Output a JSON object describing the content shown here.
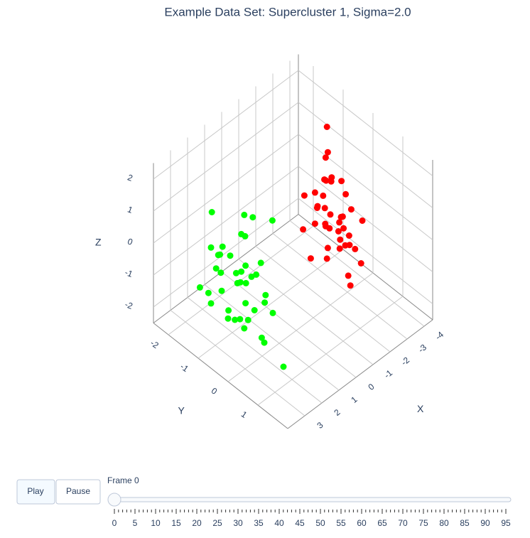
{
  "chart_data": {
    "type": "scatter3d",
    "title": "Example Data Set: Supercluster 1, Sigma=2.0",
    "xlabel": "X",
    "ylabel": "Y",
    "zlabel": "Z",
    "xlim": [
      -4.5,
      4
    ],
    "ylim": [
      -2.5,
      2
    ],
    "zlim": [
      -2.5,
      2.5
    ],
    "xticks": [
      -4,
      -3,
      -2,
      -1,
      0,
      1,
      2,
      3
    ],
    "yticks": [
      -2,
      -1,
      0,
      1
    ],
    "zticks": [
      -2,
      -1,
      0,
      1,
      2
    ],
    "grid": true,
    "series": [
      {
        "color": "#ff0000",
        "x": [
          -1.2,
          -1.5,
          -0.8,
          -2.1,
          -1.9,
          -1.0,
          -0.5,
          -2.6,
          -1.3,
          -1.7,
          -3.2,
          -1.1,
          -0.9,
          -2.0,
          -1.4,
          -1.6,
          -0.3,
          -2.4,
          -1.8,
          -1.2,
          -0.7,
          -2.9,
          -1.5,
          -1.0,
          -3.6,
          -1.3,
          -2.2,
          -0.6,
          -1.9,
          -1.1,
          -2.7,
          -1.4,
          -0.4,
          -1.7,
          -2.3,
          -1.0,
          -3.0,
          -1.6,
          -0.9,
          -2.0
        ],
        "y": [
          0.3,
          0.1,
          0.6,
          -0.2,
          0.5,
          0.9,
          0.2,
          -0.5,
          0.4,
          1.0,
          -0.8,
          0.0,
          1.3,
          0.7,
          -0.1,
          0.2,
          0.8,
          0.4,
          -0.4,
          1.1,
          0.5,
          0.0,
          0.6,
          -0.3,
          -1.0,
          0.9,
          0.3,
          1.4,
          0.1,
          0.4,
          -0.6,
          0.7,
          0.0,
          1.2,
          0.2,
          0.6,
          0.5,
          -0.2,
          0.9,
          0.3
        ],
        "z": [
          0.5,
          0.8,
          0.2,
          1.2,
          0.3,
          0.6,
          -0.3,
          1.5,
          0.9,
          0.1,
          2.0,
          0.4,
          -0.5,
          1.0,
          0.7,
          0.2,
          1.3,
          -0.2,
          0.8,
          0.5,
          1.8,
          0.6,
          -0.1,
          1.1,
          0.9,
          0.3,
          0.4,
          0.0,
          1.6,
          -0.4,
          0.7,
          1.0,
          0.5,
          -0.2,
          1.4,
          2.2,
          0.1,
          0.6,
          0.9,
          0.3
        ]
      },
      {
        "color": "#00ff00",
        "x": [
          2.4,
          2.1,
          2.8,
          1.9,
          2.6,
          3.1,
          2.2,
          1.6,
          2.9,
          2.5,
          3.4,
          2.0,
          1.7,
          2.7,
          2.3,
          3.0,
          1.5,
          2.6,
          2.2,
          3.3,
          2.8,
          1.8,
          2.4,
          2.1,
          3.6,
          2.5,
          1.4,
          2.9,
          2.3,
          2.7,
          3.2,
          1.9,
          2.5,
          2.0,
          3.0,
          2.6,
          1.3,
          2.8,
          2.2,
          2.4
        ],
        "y": [
          -0.6,
          -0.3,
          -0.9,
          -0.1,
          -1.2,
          -0.5,
          0.2,
          -0.8,
          -0.4,
          0.4,
          -1.0,
          -0.7,
          -1.5,
          -0.2,
          -0.9,
          0.1,
          -0.6,
          0.7,
          -1.3,
          -0.4,
          -0.1,
          -1.8,
          0.3,
          -0.5,
          -0.8,
          -1.1,
          0.0,
          0.5,
          -0.7,
          -0.3,
          -1.4,
          -0.6,
          1.0,
          -0.2,
          -0.9,
          -0.4,
          -1.0,
          0.2,
          -1.6,
          -0.5
        ],
        "z": [
          -0.5,
          -0.2,
          -0.8,
          0.3,
          -0.4,
          -1.0,
          -0.6,
          0.5,
          -1.3,
          -0.1,
          -0.7,
          0.8,
          -0.3,
          -1.5,
          0.1,
          -0.9,
          1.2,
          -0.4,
          -0.2,
          -1.1,
          -0.6,
          0.6,
          -1.7,
          0.0,
          -0.8,
          -0.5,
          1.5,
          -1.2,
          -0.3,
          0.2,
          -0.9,
          -0.7,
          -1.9,
          -0.1,
          0.4,
          -1.4,
          0.9,
          -0.6,
          -0.2,
          -0.4
        ]
      }
    ],
    "controls": {
      "play": "Play",
      "pause": "Pause",
      "current": "Frame 0",
      "slider_value": 0,
      "slider_ticks": [
        0,
        5,
        10,
        15,
        20,
        25,
        30,
        35,
        40,
        45,
        50,
        55,
        60,
        65,
        70,
        75,
        80,
        85,
        90,
        95
      ]
    }
  }
}
